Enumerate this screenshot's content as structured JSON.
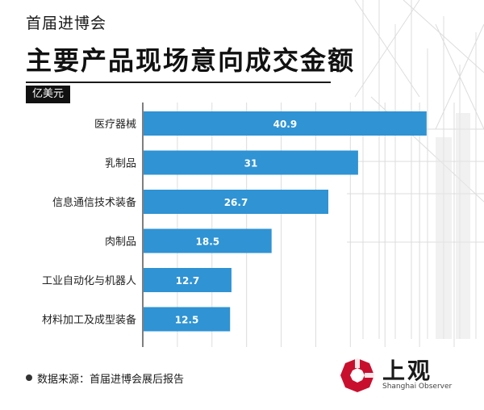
{
  "header": {
    "subtitle": "首届进博会",
    "title": "主要产品现场意向成交金额"
  },
  "unit_label": "亿美元",
  "chart_data": {
    "type": "bar",
    "orientation": "horizontal",
    "categories": [
      "医疗器械",
      "乳制品",
      "信息通信技术装备",
      "肉制品",
      "工业自动化与机器人",
      "材料加工及成型装备"
    ],
    "values": [
      40.9,
      31,
      26.7,
      18.5,
      12.7,
      12.5
    ],
    "value_labels": [
      "40.9",
      "31",
      "26.7",
      "18.5",
      "12.7",
      "12.5"
    ],
    "title": "主要产品现场意向成交金额",
    "xlabel": "",
    "ylabel": "",
    "xlim": [
      0,
      45
    ],
    "grid": true,
    "bar_color": "#2f93d4",
    "label_color": "#ffffff"
  },
  "footer": {
    "source_text": "数据来源：首届进博会展后报告"
  },
  "logo": {
    "name_cn": "上观",
    "name_en": "Shanghai Observer",
    "color": "#c8102e"
  }
}
